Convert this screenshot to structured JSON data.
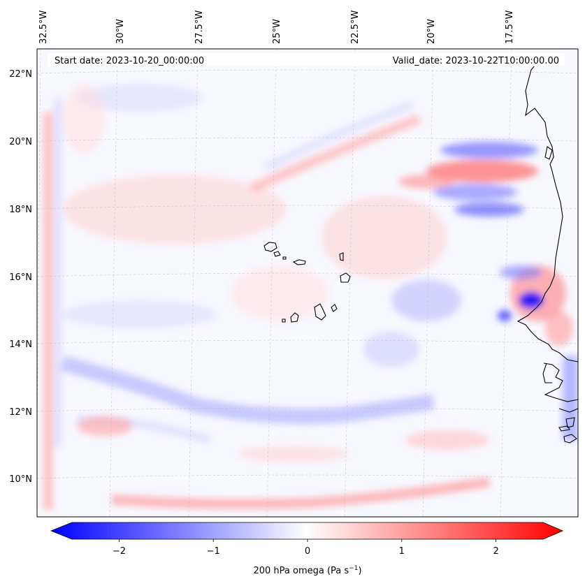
{
  "map": {
    "start_date": "Start date: 2023-10-20_00:00:00",
    "valid_date": "Valid_date: 2023-10-22T10:00:00.00",
    "lon_labels": [
      "32.5°W",
      "30°W",
      "27.5°W",
      "25°W",
      "22.5°W",
      "20°W",
      "17.5°W"
    ],
    "lat_labels": [
      "22°N",
      "20°N",
      "18°N",
      "16°N",
      "14°N",
      "12°N",
      "10°N"
    ]
  },
  "colorbar": {
    "label_text": "200 hPa omega (Pa s",
    "label_sup": "−1",
    "label_close": ")",
    "ticks": [
      "−2",
      "−1",
      "0",
      "1",
      "2"
    ],
    "tick_values": [
      -2,
      -1,
      0,
      1,
      2
    ],
    "vmin": -2.5,
    "vmax": 2.5,
    "colors": {
      "negative": "#0000ff",
      "zero": "#ffffff",
      "positive": "#ff0000"
    }
  }
}
